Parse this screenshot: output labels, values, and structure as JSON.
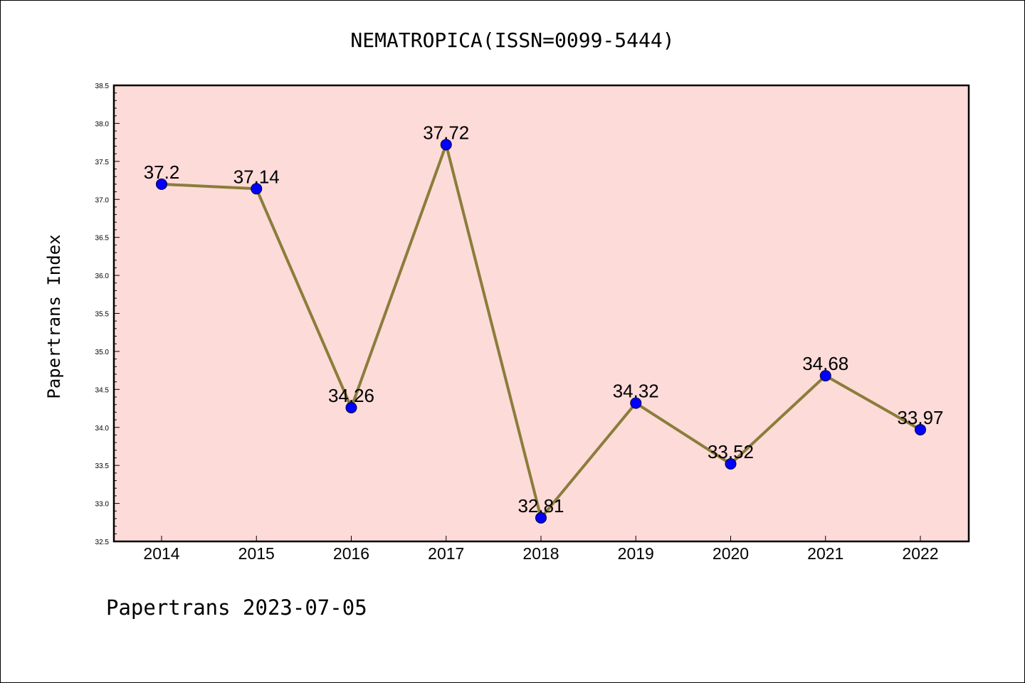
{
  "title": "NEMATROPICA(ISSN=0099-5444)",
  "footer": "Papertrans 2023-07-05",
  "colors": {
    "plot_background": "#FDDBD9",
    "line": "#8B7D3A",
    "marker": "#0000FF"
  },
  "chart_data": {
    "type": "line",
    "title": "NEMATROPICA(ISSN=0099-5444)",
    "xlabel": "",
    "ylabel": "Papertrans Index",
    "categories": [
      "2014",
      "2015",
      "2016",
      "2017",
      "2018",
      "2019",
      "2020",
      "2021",
      "2022"
    ],
    "values": [
      37.2,
      37.14,
      34.26,
      37.72,
      32.81,
      34.32,
      33.52,
      34.68,
      33.97
    ],
    "data_labels": [
      "37.2",
      "37.14",
      "34.26",
      "37.72",
      "32.81",
      "34.32",
      "33.52",
      "34.68",
      "33.97"
    ],
    "ylim": [
      32.5,
      38.5
    ],
    "yticks": [
      "32.5",
      "33.0",
      "33.5",
      "34.0",
      "34.5",
      "35.0",
      "35.5",
      "36.0",
      "36.5",
      "37.0",
      "37.5",
      "38.0",
      "38.5"
    ],
    "grid": false,
    "legend": "none"
  }
}
